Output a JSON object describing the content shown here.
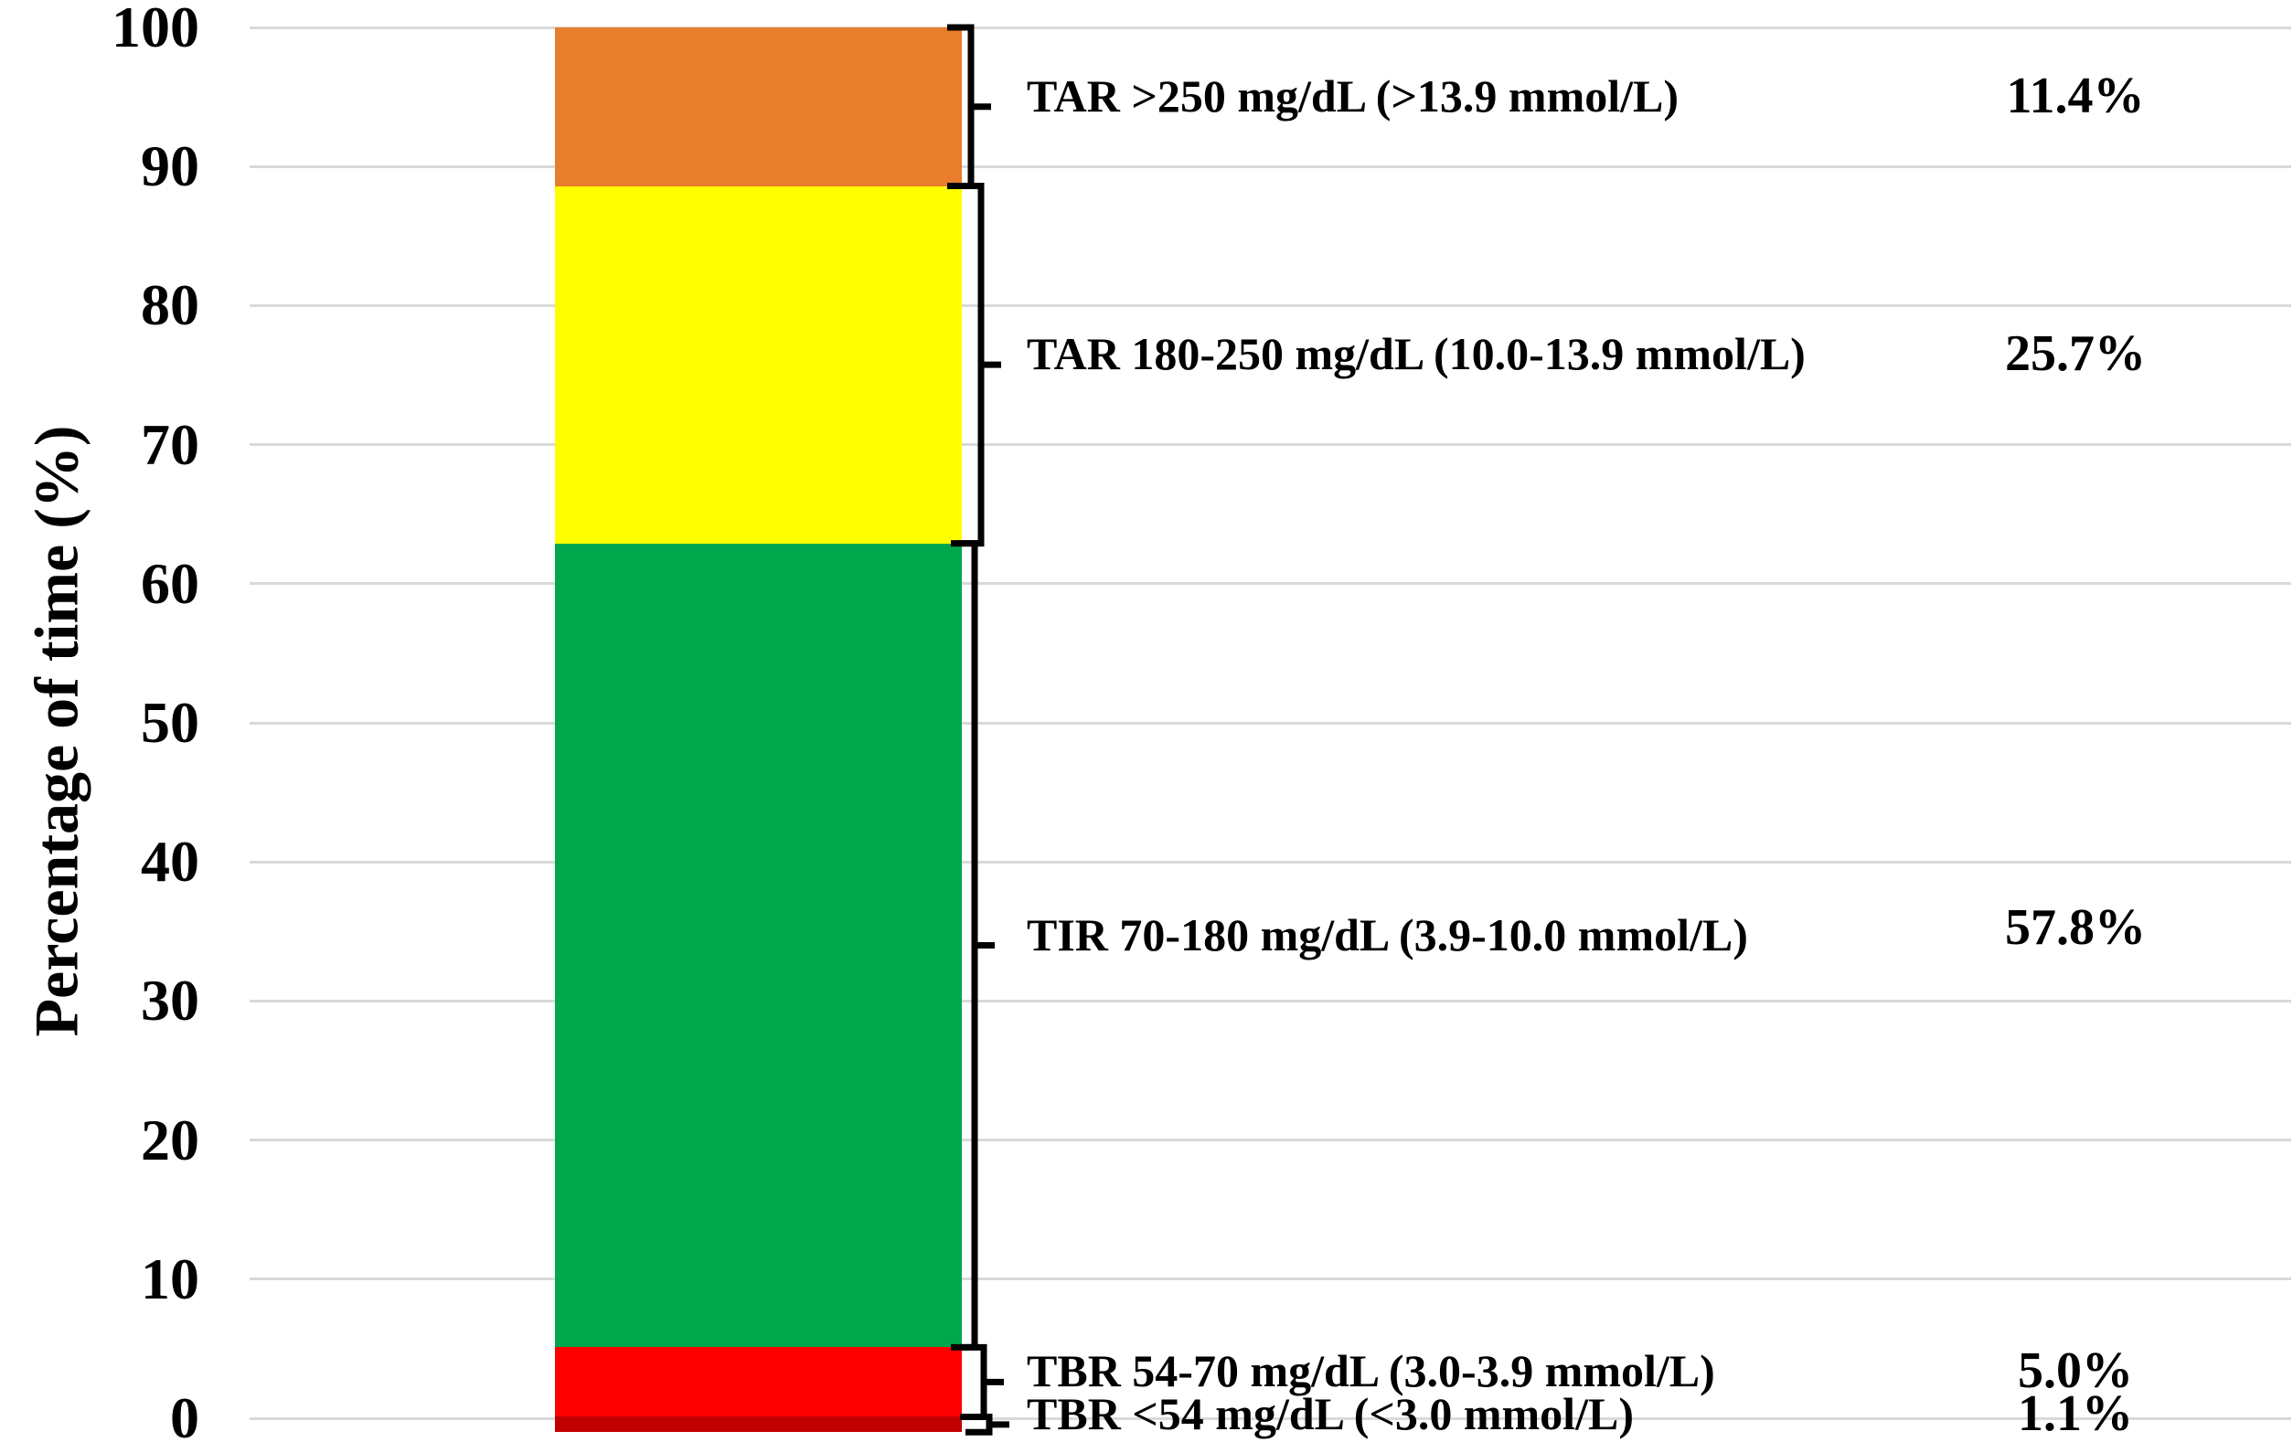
{
  "chart_data": {
    "type": "bar",
    "subtype": "stacked-single-column",
    "title": "",
    "xlabel": "",
    "ylabel": "Percentage of time (%)",
    "ylim": [
      0,
      100
    ],
    "yticks": [
      0,
      10,
      20,
      30,
      40,
      50,
      60,
      70,
      80,
      90,
      100
    ],
    "grid": "horizontal",
    "legend_position": "right-annotations",
    "categories": [
      "single-bar"
    ],
    "segments_top_to_bottom": [
      {
        "name": "tar-over-250",
        "label": "TAR >250 mg/dL (>13.9 mmol/L)",
        "value": 11.4,
        "value_label": "11.4%",
        "color": "#E87D2B"
      },
      {
        "name": "tar-180-250",
        "label": "TAR 180-250 mg/dL (10.0-13.9 mmol/L)",
        "value": 25.7,
        "value_label": "25.7%",
        "color": "#FFFF00"
      },
      {
        "name": "tir-70-180",
        "label": "TIR 70-180 mg/dL (3.9-10.0 mmol/L)",
        "value": 57.8,
        "value_label": "57.8%",
        "color": "#00A84D"
      },
      {
        "name": "tbr-54-70",
        "label": "TBR 54-70 mg/dL (3.0-3.9 mmol/L)",
        "value": 5.0,
        "value_label": "5.0%",
        "color": "#FF0000"
      },
      {
        "name": "tbr-under-54",
        "label": "TBR <54 mg/dL (<3.0 mmol/L)",
        "value": 1.1,
        "value_label": "1.1%",
        "color": "#C00000"
      }
    ],
    "colors": {
      "grid": "#D9D9D9",
      "bracket": "#000000",
      "text": "#000000",
      "background": "#FFFFFF"
    }
  }
}
